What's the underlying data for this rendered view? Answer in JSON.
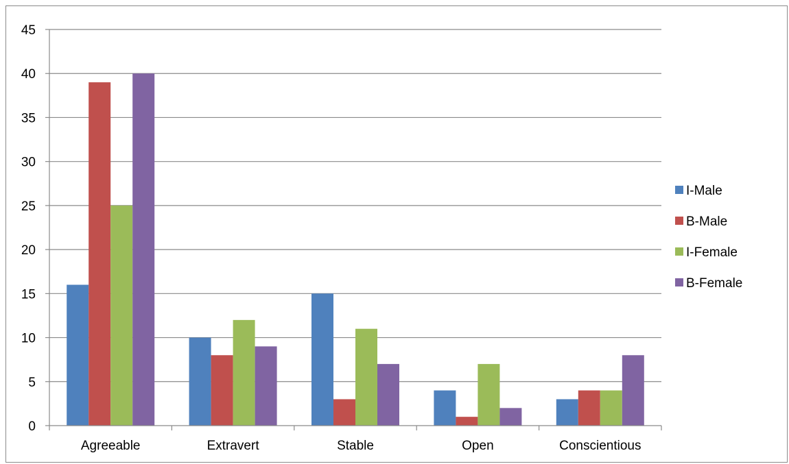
{
  "chart_data": {
    "type": "bar",
    "categories": [
      "Agreeable",
      "Extravert",
      "Stable",
      "Open",
      "Conscientious"
    ],
    "series": [
      {
        "name": "I-Male",
        "color": "#4f81bd",
        "values": [
          16,
          10,
          15,
          4,
          3
        ]
      },
      {
        "name": "B-Male",
        "color": "#c0504d",
        "values": [
          39,
          8,
          3,
          1,
          4
        ]
      },
      {
        "name": "I-Female",
        "color": "#9bbb59",
        "values": [
          25,
          12,
          11,
          7,
          4
        ]
      },
      {
        "name": "B-Female",
        "color": "#8064a2",
        "values": [
          40,
          9,
          7,
          2,
          8
        ]
      }
    ],
    "ylim": [
      0,
      45
    ],
    "yticks": [
      "0",
      "5",
      "10",
      "15",
      "20",
      "25",
      "30",
      "35",
      "40",
      "45"
    ],
    "grid": true,
    "legend_position": "right"
  }
}
